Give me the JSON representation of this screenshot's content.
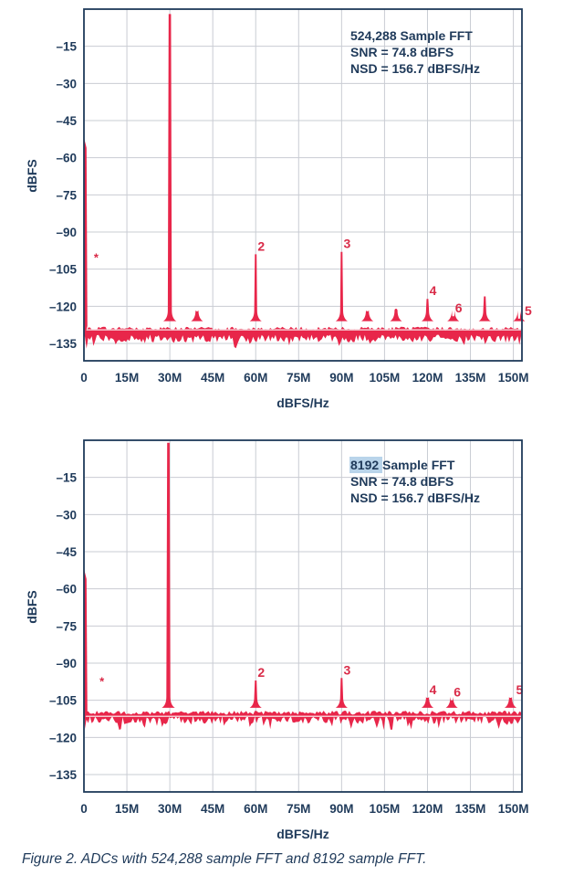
{
  "colors": {
    "trace": "#e8264a",
    "axis": "#1f3a5a",
    "grid": "#c9ccd3",
    "highlight": "#b9d4ea",
    "noise_line": "#f6c8cf"
  },
  "caption": "Figure 2. ADCs with 524,288 sample FFT and 8192 sample FFT.",
  "chart_data": [
    {
      "type": "line",
      "title": "",
      "xlabel": "dBFS/Hz",
      "ylabel": "dBFS",
      "xlim": [
        0,
        153
      ],
      "ylim": [
        -142,
        0
      ],
      "grid": true,
      "x_ticks": [
        0,
        15,
        30,
        45,
        60,
        75,
        90,
        105,
        120,
        135,
        150
      ],
      "x_tick_labels": [
        "0",
        "15M",
        "30M",
        "45M",
        "60M",
        "75M",
        "90M",
        "105M",
        "120M",
        "135M",
        "150M"
      ],
      "y_ticks": [
        -15,
        -30,
        -45,
        -60,
        -75,
        -90,
        -105,
        -120,
        -135
      ],
      "y_tick_labels": [
        "–15",
        "–30",
        "–45",
        "–60",
        "–75",
        "–90",
        "–105",
        "–120",
        "–135"
      ],
      "info": {
        "samples_value": "524,288",
        "samples_suffix": " Sample FFT",
        "snr": "SNR = 74.8 dBFS",
        "nsd": "NSD = 156.7 dBFS/Hz"
      },
      "noise_floor": {
        "top": -128,
        "bottom": -133,
        "center": -129.5
      },
      "dc_spike": {
        "x": 0.5,
        "y": -52
      },
      "peaks": [
        {
          "x": 30,
          "y": -2,
          "label": ""
        },
        {
          "x": 39.5,
          "y": -122,
          "label": ""
        },
        {
          "x": 60,
          "y": -99,
          "label": "2"
        },
        {
          "x": 90,
          "y": -98,
          "label": "3"
        },
        {
          "x": 99,
          "y": -122,
          "label": ""
        },
        {
          "x": 109,
          "y": -121,
          "label": ""
        },
        {
          "x": 120,
          "y": -117,
          "label": "4"
        },
        {
          "x": 129,
          "y": -124,
          "label": "6"
        },
        {
          "x": 140,
          "y": -116,
          "label": ""
        },
        {
          "x": 152,
          "y": -125,
          "label": "5"
        }
      ],
      "star": {
        "x": 3,
        "y": -102,
        "label": "*"
      }
    },
    {
      "type": "line",
      "title": "",
      "xlabel": "dBFS/Hz",
      "ylabel": "dBFS",
      "xlim": [
        0,
        153
      ],
      "ylim": [
        -142,
        0
      ],
      "grid": true,
      "x_ticks": [
        0,
        15,
        30,
        45,
        60,
        75,
        90,
        105,
        120,
        135,
        150
      ],
      "x_tick_labels": [
        "0",
        "15M",
        "30M",
        "45M",
        "60M",
        "75M",
        "90M",
        "105M",
        "120M",
        "135M",
        "150M"
      ],
      "y_ticks": [
        -15,
        -30,
        -45,
        -60,
        -75,
        -90,
        -105,
        -120,
        -135
      ],
      "y_tick_labels": [
        "–15",
        "–30",
        "–45",
        "–60",
        "–75",
        "–90",
        "–105",
        "–120",
        "–135"
      ],
      "info": {
        "samples_value": "8192",
        "samples_suffix": " Sample FFT",
        "snr": "SNR = 74.8 dBFS",
        "nsd": "NSD = 156.7 dBFS/Hz"
      },
      "noise_floor": {
        "top": -110,
        "bottom": -113,
        "center": -111.5
      },
      "dc_spike": {
        "x": 0.5,
        "y": -52
      },
      "peaks": [
        {
          "x": 29.5,
          "y": -1,
          "label": ""
        },
        {
          "x": 60,
          "y": -97,
          "label": "2"
        },
        {
          "x": 90,
          "y": -96,
          "label": "3"
        },
        {
          "x": 120,
          "y": -104,
          "label": "4"
        },
        {
          "x": 128.5,
          "y": -105,
          "label": "6"
        },
        {
          "x": 149,
          "y": -104,
          "label": "5"
        }
      ],
      "star": {
        "x": 5,
        "y": -99,
        "label": "*"
      }
    }
  ]
}
